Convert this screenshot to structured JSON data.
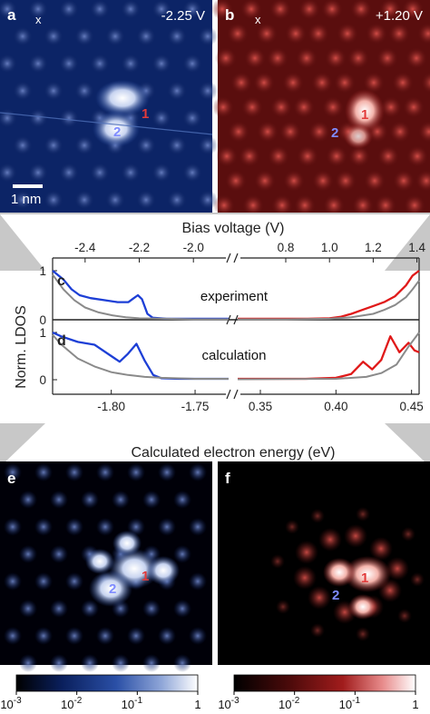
{
  "figure": {
    "panels": {
      "a": {
        "label": "a",
        "voltage": "-2.25 V",
        "marker": "x",
        "site1": "1",
        "site2": "2",
        "scalebar": "1 nm"
      },
      "b": {
        "label": "b",
        "voltage": "+1.20 V",
        "marker": "x",
        "site1": "1",
        "site2": "2"
      },
      "e": {
        "label": "e",
        "site1": "1",
        "site2": "2"
      },
      "f": {
        "label": "f",
        "site1": "1",
        "site2": "2"
      }
    },
    "colors": {
      "blue_map": [
        "#000010",
        "#0a1f5c",
        "#2a4fa6",
        "#8fa6d8",
        "#ffffff"
      ],
      "red_map": [
        "#000000",
        "#4a0a0a",
        "#a11c1c",
        "#e88c8c",
        "#ffffff"
      ],
      "curve_blue": "#1d3fd6",
      "curve_red": "#e01919",
      "curve_gray": "#8a8a8a",
      "band": "#c8c8c8"
    },
    "colorbars": {
      "blue": {
        "ticks": [
          "10",
          "10",
          "10",
          "1"
        ],
        "exps": [
          "-3",
          "-2",
          "-1",
          ""
        ]
      },
      "red": {
        "ticks": [
          "10",
          "10",
          "10",
          "1"
        ],
        "exps": [
          "-3",
          "-2",
          "-1",
          ""
        ]
      }
    }
  },
  "chart_data": [
    {
      "type": "line",
      "panel": "c",
      "annotation": "experiment",
      "xlabel": "Bias voltage (V)",
      "ylabel": "Norm. LDOS",
      "x_ticks_left": [
        "-2.4",
        "-2.2",
        "-2.0"
      ],
      "x_ticks_right": [
        "0.8",
        "1.0",
        "1.2",
        "1.4"
      ],
      "y_ticks": [
        "1",
        "0"
      ],
      "xlim_left": [
        -2.52,
        -1.87
      ],
      "xlim_right": [
        0.58,
        1.41
      ],
      "ylim": [
        0,
        1
      ],
      "series": [
        {
          "color": "blue",
          "x": [
            -2.52,
            -2.48,
            -2.45,
            -2.42,
            -2.38,
            -2.33,
            -2.28,
            -2.24,
            -2.22,
            -2.205,
            -2.19,
            -2.17,
            -2.15,
            -2.1,
            -2.0,
            -1.9,
            -1.87
          ],
          "y": [
            1.0,
            0.82,
            0.62,
            0.5,
            0.44,
            0.4,
            0.36,
            0.36,
            0.44,
            0.5,
            0.42,
            0.12,
            0.04,
            0.02,
            0.02,
            0.02,
            0.02
          ]
        },
        {
          "color": "gray",
          "x": [
            -2.52,
            -2.48,
            -2.44,
            -2.4,
            -2.35,
            -2.3,
            -2.25,
            -2.2,
            -2.1,
            -2.0,
            -1.87
          ],
          "y": [
            0.92,
            0.62,
            0.4,
            0.25,
            0.15,
            0.09,
            0.05,
            0.03,
            0.02,
            0.01,
            0.01
          ]
        },
        {
          "color": "red",
          "x": [
            0.58,
            0.7,
            0.8,
            0.9,
            1.0,
            1.05,
            1.1,
            1.15,
            1.2,
            1.25,
            1.3,
            1.35,
            1.38,
            1.41
          ],
          "y": [
            0.02,
            0.02,
            0.02,
            0.02,
            0.03,
            0.06,
            0.12,
            0.2,
            0.28,
            0.36,
            0.48,
            0.7,
            0.9,
            1.0
          ]
        },
        {
          "color": "gray",
          "x": [
            0.58,
            0.8,
            1.0,
            1.1,
            1.2,
            1.25,
            1.3,
            1.35,
            1.38,
            1.41
          ],
          "y": [
            0.01,
            0.01,
            0.02,
            0.05,
            0.12,
            0.2,
            0.3,
            0.46,
            0.62,
            0.8
          ]
        }
      ]
    },
    {
      "type": "line",
      "panel": "d",
      "annotation": "calculation",
      "xlabel": "Calculated electron energy (eV)",
      "ylabel": "Norm. LDOS",
      "x_ticks_left": [
        "-1.80",
        "-1.75"
      ],
      "x_ticks_right": [
        "0.35",
        "0.40",
        "0.45"
      ],
      "y_ticks": [
        "1",
        "0"
      ],
      "xlim_left": [
        -1.835,
        -1.73
      ],
      "xlim_right": [
        0.335,
        0.455
      ],
      "ylim": [
        0,
        1
      ],
      "series": [
        {
          "color": "blue",
          "x": [
            -1.835,
            -1.83,
            -1.82,
            -1.81,
            -1.8,
            -1.795,
            -1.79,
            -1.785,
            -1.78,
            -1.775,
            -1.77,
            -1.76,
            -1.75,
            -1.73
          ],
          "y": [
            1.0,
            0.92,
            0.8,
            0.74,
            0.5,
            0.38,
            0.55,
            0.76,
            0.4,
            0.1,
            0.03,
            0.02,
            0.02,
            0.02
          ]
        },
        {
          "color": "gray",
          "x": [
            -1.835,
            -1.83,
            -1.82,
            -1.81,
            -1.8,
            -1.79,
            -1.78,
            -1.77,
            -1.75,
            -1.73
          ],
          "y": [
            0.95,
            0.75,
            0.45,
            0.28,
            0.16,
            0.1,
            0.06,
            0.04,
            0.02,
            0.02
          ]
        },
        {
          "color": "red",
          "x": [
            0.335,
            0.38,
            0.4,
            0.41,
            0.418,
            0.424,
            0.43,
            0.436,
            0.442,
            0.448,
            0.452,
            0.455
          ],
          "y": [
            0.02,
            0.02,
            0.04,
            0.12,
            0.38,
            0.22,
            0.42,
            0.92,
            0.58,
            0.78,
            0.62,
            0.58
          ]
        },
        {
          "color": "gray",
          "x": [
            0.335,
            0.4,
            0.42,
            0.43,
            0.44,
            0.448,
            0.455
          ],
          "y": [
            0.01,
            0.02,
            0.06,
            0.14,
            0.32,
            0.7,
            1.0
          ]
        }
      ]
    }
  ]
}
